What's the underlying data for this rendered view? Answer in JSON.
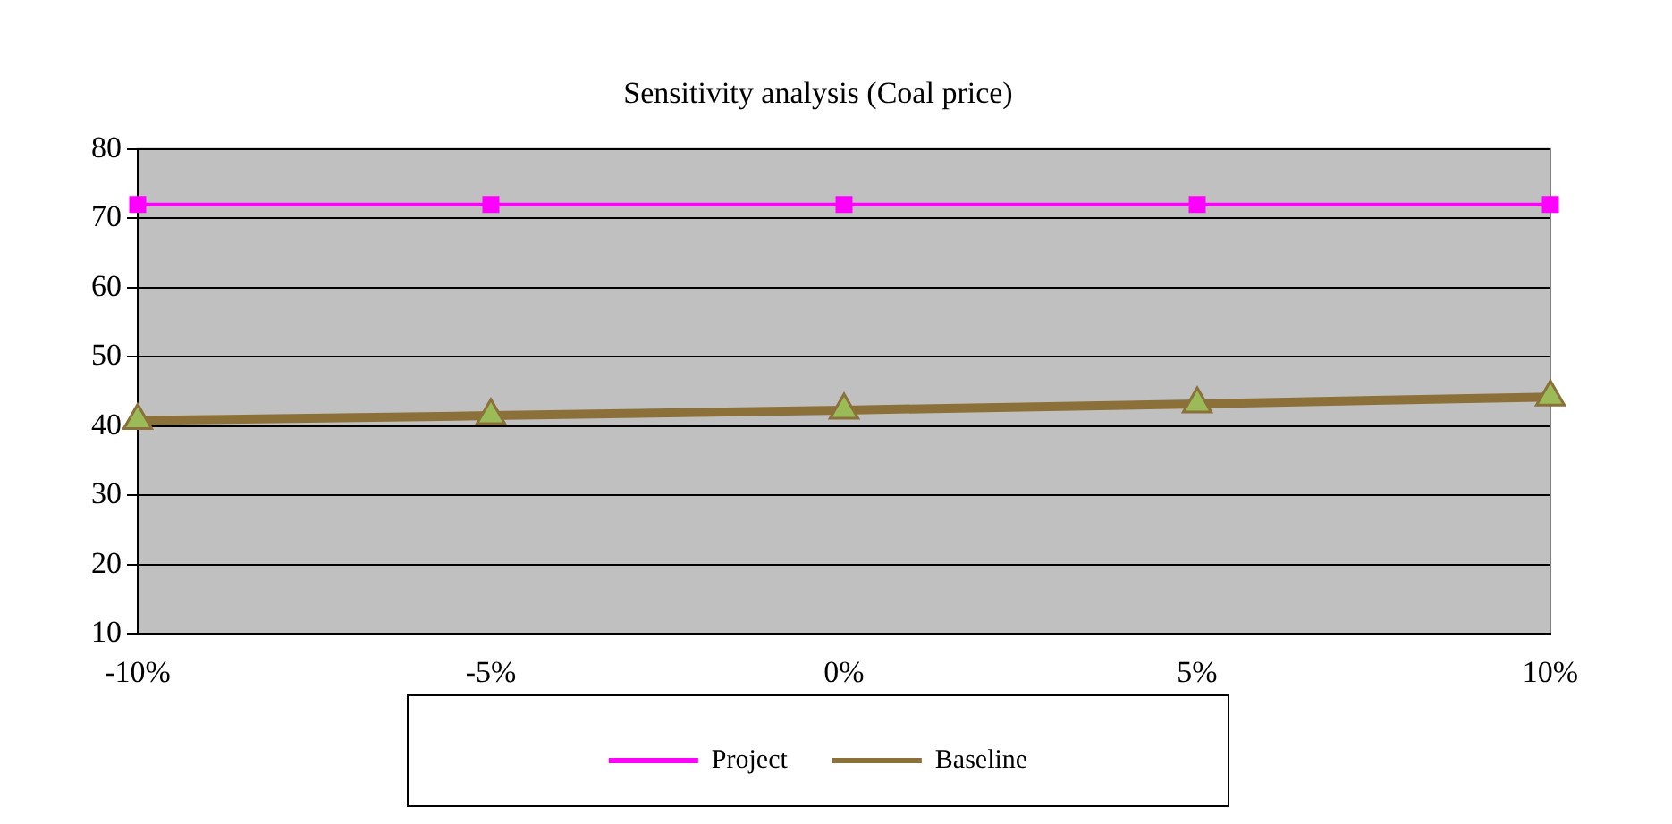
{
  "chart_data": {
    "type": "line",
    "title": "Sensitivity analysis (Coal price)",
    "categories": [
      "-10%",
      "-5%",
      "0%",
      "5%",
      "10%"
    ],
    "series": [
      {
        "name": "Project",
        "color": "#ff00ff",
        "marker": "square",
        "values": [
          72,
          72,
          72,
          72,
          72
        ]
      },
      {
        "name": "Baseline",
        "color": "#8b7039",
        "marker": "triangle",
        "values": [
          40.8,
          41.5,
          42.3,
          43.2,
          44.2
        ]
      }
    ],
    "ylim": [
      10,
      80
    ],
    "yticks": [
      10,
      20,
      30,
      40,
      50,
      60,
      70,
      80
    ],
    "grid": "y",
    "legend": "bottom"
  }
}
